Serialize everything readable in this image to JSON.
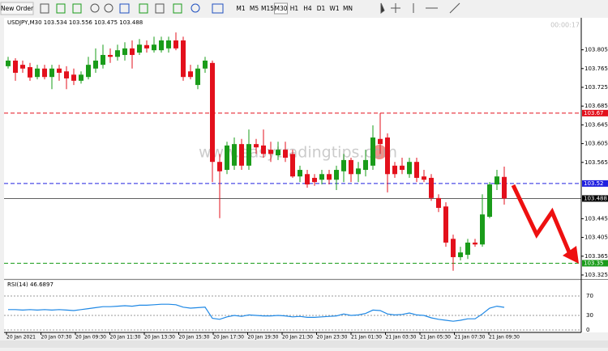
{
  "toolbar": {
    "new_order": "New Order",
    "timeframes": [
      "M1",
      "M5",
      "M15",
      "M30",
      "H1",
      "H4",
      "D1",
      "W1",
      "MN"
    ]
  },
  "timer": "00:00:17",
  "chart_data": {
    "type": "candlestick",
    "title": "USDJPY,M30 103.534 103.556 103.475 103.488",
    "up_color": "#1a9c1a",
    "down_color": "#e3101c",
    "open": [
      103.77,
      103.782,
      103.773,
      103.768,
      103.747,
      103.765,
      103.747,
      103.765,
      103.759,
      103.752,
      103.739,
      103.747,
      103.765,
      103.773,
      103.794,
      103.79,
      103.794,
      103.808,
      103.799,
      103.815,
      103.804,
      103.804,
      103.808,
      103.825,
      103.825,
      103.759,
      103.73,
      103.765,
      103.777,
      103.566,
      103.549,
      103.558,
      103.604,
      103.558,
      103.604,
      103.601,
      103.592,
      103.58,
      103.592,
      103.583,
      103.535,
      103.54,
      103.532,
      103.528,
      103.54,
      103.528,
      103.546,
      103.57,
      103.54,
      103.549,
      103.558,
      103.615,
      103.618,
      103.558,
      103.558,
      103.54,
      103.566,
      103.535,
      103.532,
      103.489,
      103.471,
      103.402,
      103.363,
      103.368,
      103.394,
      103.39,
      103.449,
      103.518,
      103.534
    ],
    "high": [
      103.79,
      103.787,
      103.782,
      103.777,
      103.773,
      103.773,
      103.773,
      103.773,
      103.77,
      103.765,
      103.759,
      103.79,
      103.808,
      103.816,
      103.808,
      103.816,
      103.821,
      103.825,
      103.828,
      103.825,
      103.833,
      103.833,
      103.833,
      103.842,
      103.833,
      103.773,
      103.773,
      103.79,
      103.782,
      103.583,
      103.609,
      103.618,
      103.615,
      103.635,
      103.615,
      103.635,
      103.609,
      103.609,
      103.609,
      103.592,
      103.558,
      103.549,
      103.54,
      103.549,
      103.549,
      103.558,
      103.583,
      103.575,
      103.566,
      103.592,
      103.644,
      103.67,
      103.627,
      103.566,
      103.575,
      103.575,
      103.575,
      103.549,
      103.54,
      103.497,
      103.48,
      103.411,
      103.385,
      103.402,
      103.402,
      103.497,
      103.523,
      103.549,
      103.556
    ],
    "low": [
      103.765,
      103.739,
      103.756,
      103.739,
      103.742,
      103.742,
      103.721,
      103.739,
      103.721,
      103.73,
      103.733,
      103.742,
      103.756,
      103.765,
      103.777,
      103.782,
      103.782,
      103.765,
      103.794,
      103.799,
      103.799,
      103.799,
      103.799,
      103.804,
      103.739,
      103.742,
      103.721,
      103.756,
      103.523,
      103.446,
      103.54,
      103.549,
      103.549,
      103.549,
      103.583,
      103.575,
      103.566,
      103.57,
      103.566,
      103.532,
      103.523,
      103.511,
      103.515,
      103.518,
      103.518,
      103.506,
      103.523,
      103.523,
      103.523,
      103.535,
      103.549,
      103.583,
      103.501,
      103.532,
      103.54,
      103.532,
      103.523,
      103.523,
      103.483,
      103.459,
      103.385,
      103.334,
      103.356,
      103.359,
      103.385,
      103.385,
      103.446,
      103.506,
      103.475
    ],
    "close": [
      103.782,
      103.756,
      103.765,
      103.746,
      103.765,
      103.747,
      103.765,
      103.756,
      103.744,
      103.739,
      103.752,
      103.773,
      103.782,
      103.794,
      103.79,
      103.804,
      103.808,
      103.794,
      103.816,
      103.808,
      103.816,
      103.825,
      103.825,
      103.808,
      103.747,
      103.747,
      103.765,
      103.782,
      103.566,
      103.546,
      103.601,
      103.604,
      103.558,
      103.604,
      103.597,
      103.583,
      103.583,
      103.592,
      103.575,
      103.535,
      103.549,
      103.518,
      103.523,
      103.54,
      103.528,
      103.549,
      103.57,
      103.54,
      103.552,
      103.57,
      103.618,
      103.604,
      103.54,
      103.54,
      103.549,
      103.566,
      103.532,
      103.528,
      103.489,
      103.468,
      103.394,
      103.363,
      103.373,
      103.394,
      103.39,
      103.454,
      103.518,
      103.535,
      103.488
    ],
    "x_labels": [
      "20 Jan 2021",
      "20 Jan 07:30",
      "20 Jan 09:30",
      "20 Jan 11:30",
      "20 Jan 13:30",
      "20 Jan 15:30",
      "20 Jan 17:30",
      "20 Jan 19:30",
      "20 Jan 21:30",
      "20 Jan 23:30",
      "21 Jan 01:30",
      "21 Jan 03:30",
      "21 Jan 05:30",
      "21 Jan 07:30",
      "21 Jan 09:30"
    ],
    "ylim": [
      103.3198,
      103.8715
    ],
    "yticks": [
      103.805,
      103.765,
      103.725,
      103.685,
      103.645,
      103.605,
      103.565,
      103.445,
      103.405,
      103.365,
      103.325
    ],
    "grid": false,
    "levels": [
      {
        "value": 103.67,
        "color": "#e3101c",
        "style": "dashed"
      },
      {
        "value": 103.52,
        "color": "#2020e0",
        "style": "dashed"
      },
      {
        "value": 103.488,
        "color": "#000000",
        "style": "solid"
      },
      {
        "value": 103.35,
        "color": "#1a9c1a",
        "style": "dashed"
      }
    ],
    "watermark": "www.easytradingtips.com"
  },
  "indicator": {
    "type": "line",
    "title": "RSI(14) 46.6897",
    "color": "#1e88e5",
    "values": [
      42,
      42,
      41,
      42,
      41,
      42,
      41,
      42,
      41,
      40,
      42,
      44,
      46,
      48,
      48,
      49,
      50,
      49,
      51,
      51,
      52,
      53,
      53,
      52,
      47,
      45,
      46,
      47,
      24,
      22,
      27,
      30,
      28,
      31,
      30,
      29,
      29,
      30,
      29,
      27,
      28,
      26,
      26,
      27,
      28,
      29,
      33,
      30,
      31,
      34,
      41,
      40,
      33,
      31,
      32,
      35,
      31,
      30,
      25,
      22,
      20,
      18,
      20,
      23,
      23,
      33,
      45,
      49,
      46.6897
    ],
    "ylim": [
      0,
      100
    ],
    "yticks": [
      70,
      30,
      0
    ]
  }
}
